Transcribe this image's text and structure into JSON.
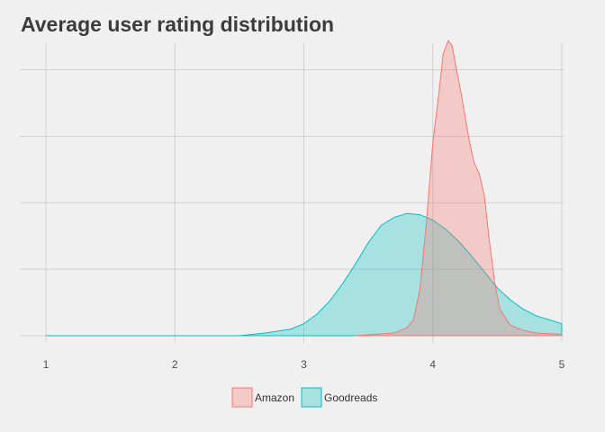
{
  "chart_data": {
    "type": "area",
    "title": "Average user rating distribution",
    "xlabel": "",
    "ylabel": "",
    "xlim": [
      1,
      5
    ],
    "ylim": [
      0,
      2.2
    ],
    "x_ticks": [
      "1",
      "2",
      "3",
      "4",
      "5"
    ],
    "y_gridlines": [
      0,
      0.5,
      1.0,
      1.5,
      2.0
    ],
    "y_tick_labels_shown": false,
    "grid": true,
    "legend_position": "bottom",
    "series": [
      {
        "name": "Amazon",
        "color": "#f8766d",
        "x": [
          3.4,
          3.7,
          3.8,
          3.85,
          3.9,
          3.95,
          4.0,
          4.05,
          4.08,
          4.12,
          4.15,
          4.18,
          4.22,
          4.28,
          4.32,
          4.36,
          4.4,
          4.44,
          4.48,
          4.52,
          4.6,
          4.7,
          4.8,
          5.0
        ],
        "y": [
          0.0,
          0.02,
          0.06,
          0.12,
          0.35,
          0.85,
          1.45,
          1.85,
          2.12,
          2.22,
          2.18,
          2.02,
          1.82,
          1.48,
          1.3,
          1.22,
          1.05,
          0.7,
          0.4,
          0.2,
          0.08,
          0.04,
          0.02,
          0.01
        ]
      },
      {
        "name": "Goodreads",
        "color": "#00bfc4",
        "x": [
          1.0,
          2.5,
          2.7,
          2.9,
          3.0,
          3.1,
          3.2,
          3.3,
          3.4,
          3.5,
          3.6,
          3.7,
          3.8,
          3.9,
          4.0,
          4.1,
          4.2,
          4.3,
          4.4,
          4.5,
          4.6,
          4.7,
          4.8,
          4.9,
          5.0
        ],
        "y": [
          0.0,
          0.0,
          0.02,
          0.05,
          0.09,
          0.16,
          0.26,
          0.39,
          0.54,
          0.7,
          0.83,
          0.89,
          0.92,
          0.91,
          0.87,
          0.8,
          0.71,
          0.6,
          0.48,
          0.36,
          0.27,
          0.2,
          0.15,
          0.12,
          0.09
        ]
      }
    ]
  }
}
